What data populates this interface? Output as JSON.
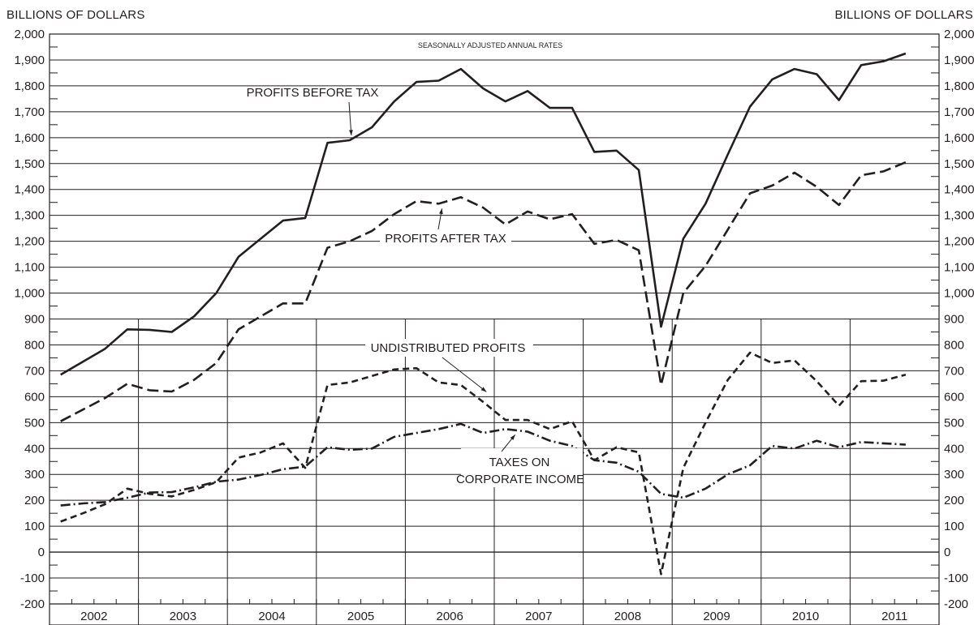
{
  "chart_data": {
    "type": "line",
    "ylabel_left": "BILLIONS OF DOLLARS",
    "ylabel_right": "BILLIONS OF DOLLARS",
    "subtitle": "SEASONALLY ADJUSTED ANNUAL RATES",
    "ylim": [
      -200,
      2000
    ],
    "yticks": [
      -200,
      -100,
      0,
      100,
      200,
      300,
      400,
      500,
      600,
      700,
      800,
      900,
      1000,
      1100,
      1200,
      1300,
      1400,
      1500,
      1600,
      1700,
      1800,
      1900,
      2000
    ],
    "ytick_labels": [
      "-200",
      "-100",
      "0",
      "100",
      "200",
      "300",
      "400",
      "500",
      "600",
      "700",
      "800",
      "900",
      "1,000",
      "1,100",
      "1,200",
      "1,300",
      "1,400",
      "1,500",
      "1,600",
      "1,700",
      "1,800",
      "1,900",
      "2,000"
    ],
    "years": [
      "2002",
      "2003",
      "2004",
      "2005",
      "2006",
      "2007",
      "2008",
      "2009",
      "2010",
      "2011"
    ],
    "grid": true,
    "x": [
      "2002 Q1",
      "2002 Q2",
      "2002 Q3",
      "2002 Q4",
      "2003 Q1",
      "2003 Q2",
      "2003 Q3",
      "2003 Q4",
      "2004 Q1",
      "2004 Q2",
      "2004 Q3",
      "2004 Q4",
      "2005 Q1",
      "2005 Q2",
      "2005 Q3",
      "2005 Q4",
      "2006 Q1",
      "2006 Q2",
      "2006 Q3",
      "2006 Q4",
      "2007 Q1",
      "2007 Q2",
      "2007 Q3",
      "2007 Q4",
      "2008 Q1",
      "2008 Q2",
      "2008 Q3",
      "2008 Q4",
      "2009 Q1",
      "2009 Q2",
      "2009 Q3",
      "2009 Q4",
      "2010 Q1",
      "2010 Q2",
      "2010 Q3",
      "2010 Q4",
      "2011 Q1",
      "2011 Q2",
      "2011 Q3"
    ],
    "series": [
      {
        "name": "PROFITS BEFORE TAX",
        "style": "solid",
        "values": [
          685,
          735,
          785,
          860,
          858,
          850,
          910,
          1000,
          1140,
          1210,
          1280,
          1290,
          1580,
          1590,
          1640,
          1740,
          1815,
          1820,
          1865,
          1790,
          1740,
          1780,
          1715,
          1715,
          1545,
          1550,
          1475,
          870,
          1210,
          1345,
          1535,
          1720,
          1825,
          1865,
          1845,
          1745,
          1880,
          1895,
          1925
        ]
      },
      {
        "name": "PROFITS AFTER TAX",
        "style": "long-dash",
        "values": [
          505,
          550,
          595,
          650,
          625,
          620,
          665,
          730,
          860,
          910,
          960,
          960,
          1175,
          1200,
          1240,
          1305,
          1355,
          1345,
          1370,
          1330,
          1265,
          1315,
          1285,
          1305,
          1190,
          1205,
          1165,
          645,
          1000,
          1105,
          1245,
          1385,
          1415,
          1465,
          1410,
          1340,
          1455,
          1470,
          1505
        ]
      },
      {
        "name": "UNDISTRIBUTED PROFITS",
        "style": "short-dash",
        "values": [
          118,
          150,
          185,
          245,
          225,
          215,
          240,
          270,
          365,
          385,
          420,
          325,
          645,
          655,
          680,
          705,
          710,
          655,
          645,
          580,
          510,
          510,
          475,
          505,
          355,
          405,
          385,
          -85,
          325,
          500,
          665,
          770,
          730,
          740,
          660,
          565,
          660,
          662,
          685
        ]
      },
      {
        "name": "TAXES ON CORPORATE INCOME",
        "style": "dash-dot",
        "values": [
          180,
          188,
          193,
          210,
          230,
          232,
          250,
          272,
          280,
          298,
          320,
          330,
          405,
          395,
          400,
          445,
          460,
          475,
          495,
          460,
          475,
          465,
          430,
          410,
          355,
          345,
          310,
          225,
          210,
          245,
          300,
          335,
          410,
          400,
          430,
          405,
          425,
          420,
          415
        ]
      }
    ],
    "annotations": [
      {
        "text": "PROFITS BEFORE TAX",
        "series": 0
      },
      {
        "text": "PROFITS AFTER TAX",
        "series": 1
      },
      {
        "text": "UNDISTRIBUTED PROFITS",
        "series": 2
      },
      {
        "text": "TAXES ON",
        "text2": "CORPORATE INCOME",
        "series": 3
      }
    ]
  }
}
